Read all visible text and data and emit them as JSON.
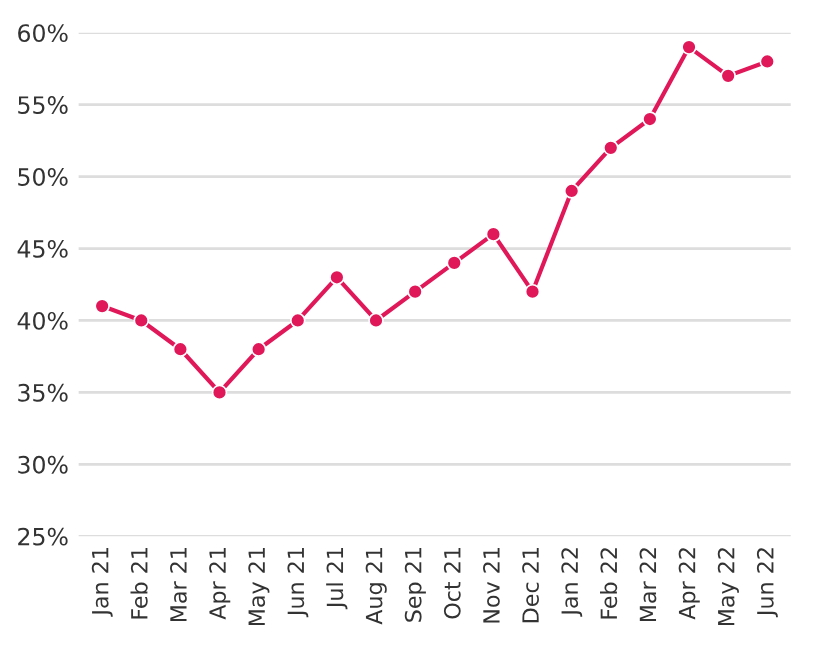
{
  "chart_data": {
    "type": "line",
    "categories": [
      "Jan 21",
      "Feb 21",
      "Mar 21",
      "Apr 21",
      "May 21",
      "Jun 21",
      "Jul 21",
      "Aug 21",
      "Sep 21",
      "Oct 21",
      "Nov 21",
      "Dec 21",
      "Jan 22",
      "Feb 22",
      "Mar 22",
      "Apr 22",
      "May 22",
      "Jun 22"
    ],
    "series": [
      {
        "color": "#e0185a",
        "values": [
          41,
          40,
          38,
          35,
          38,
          40,
          43,
          40,
          42,
          44,
          46,
          42,
          49,
          52,
          54,
          59,
          57,
          58
        ]
      }
    ],
    "ylim": [
      25,
      60
    ],
    "yticks": [
      {
        "value": 25,
        "label": "25%"
      },
      {
        "value": 30,
        "label": "30%"
      },
      {
        "value": 35,
        "label": "35%"
      },
      {
        "value": 40,
        "label": "40%"
      },
      {
        "value": 45,
        "label": "45%"
      },
      {
        "value": 50,
        "label": "50%"
      },
      {
        "value": 55,
        "label": "55%"
      },
      {
        "value": 60,
        "label": "60%"
      }
    ],
    "grid": "y",
    "marker": "circle",
    "line_style": "solid"
  }
}
